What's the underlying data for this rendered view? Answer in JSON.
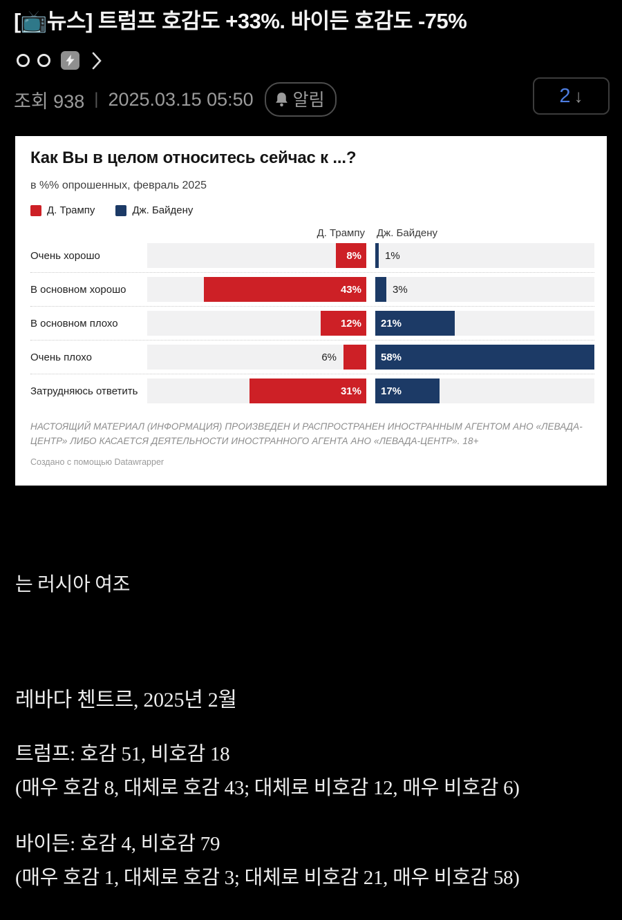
{
  "post": {
    "title": "[📺뉴스] 트럼프 호감도 +33%. 바이든 호감도 -75%",
    "meta": {
      "views": "조회 938",
      "divider": "|",
      "datetime": "2025.03.15 05:50",
      "alarm_label": "알림",
      "comment_count": "2",
      "comment_arrow": "↓"
    },
    "body": {
      "line1": "는 러시아 여조",
      "line2": "레바다 첸트르, 2025년 2월",
      "trump_line": "트럼프: 호감 51, 비호감 18",
      "trump_detail": "(매우 호감 8, 대체로 호감 43; 대체로 비호감 12, 매우 비호감 6)",
      "biden_line": "바이든: 호감 4, 비호감 79",
      "biden_detail": "(매우 호감 1, 대체로 호감 3; 대체로 비호감 21, 매우 비호감 58)"
    }
  },
  "chart_data": {
    "type": "bar",
    "orientation": "horizontal-diverging",
    "title": "Как Вы в целом относитесь сейчас к ...?",
    "subtitle": "в %% опрошенных, февраль 2025",
    "categories": [
      "Очень хорошо",
      "В основном хорошо",
      "В основном плохо",
      "Очень плохо",
      "Затрудняюсь ответить"
    ],
    "series": [
      {
        "name": "Д. Трампу",
        "color": "#cd2026",
        "values": [
          8,
          43,
          12,
          6,
          31
        ]
      },
      {
        "name": "Дж. Байдену",
        "color": "#1c3a66",
        "values": [
          1,
          3,
          21,
          58,
          17
        ]
      }
    ],
    "unit": "%",
    "xlim": [
      0,
      58
    ],
    "grid": "off",
    "legend_position": "top-left",
    "track_color": "#f1f1f2",
    "note": "НАСТОЯЩИЙ МАТЕРИАЛ (ИНФОРМАЦИЯ) ПРОИЗВЕДЕН И РАСПРОСТРАНЕН ИНОСТРАННЫМ АГЕНТОМ АНО «ЛЕВАДА-ЦЕНТР» ЛИБО КАСАЕТСЯ ДЕЯТЕЛЬНОСТИ ИНОСТРАННОГО АГЕНТА АНО «ЛЕВАДА-ЦЕНТР». 18+",
    "credit": "Создано с помощью Datawrapper"
  }
}
